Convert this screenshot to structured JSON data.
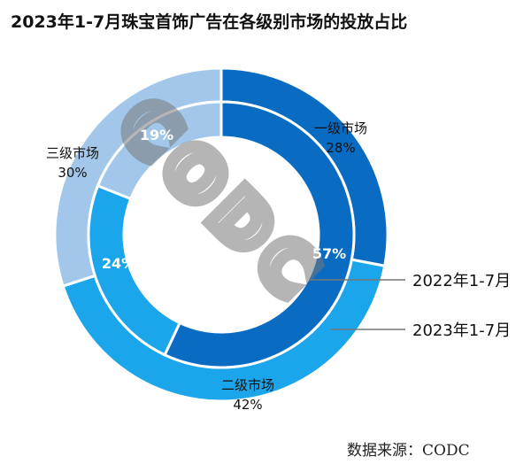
{
  "chart_data": {
    "type": "pie",
    "subtype": "double-donut",
    "title": "2023年1-7月珠宝首饰广告在各级别市场的投放占比",
    "categories": [
      "一级市场",
      "二级市场",
      "三级市场"
    ],
    "colors": [
      "#0a6bc3",
      "#1ba5ea",
      "#a2c7ea"
    ],
    "series": [
      {
        "name": "2023年1-7月",
        "ring": "outer",
        "values": [
          28,
          42,
          30
        ],
        "labels": [
          "28%",
          "42%",
          "30%"
        ]
      },
      {
        "name": "2022年1-7月",
        "ring": "inner",
        "values": [
          57,
          24,
          19
        ],
        "labels": [
          "57%",
          "24%",
          "19%"
        ]
      }
    ],
    "watermark": "CODC",
    "source": "数据来源：CODC"
  }
}
